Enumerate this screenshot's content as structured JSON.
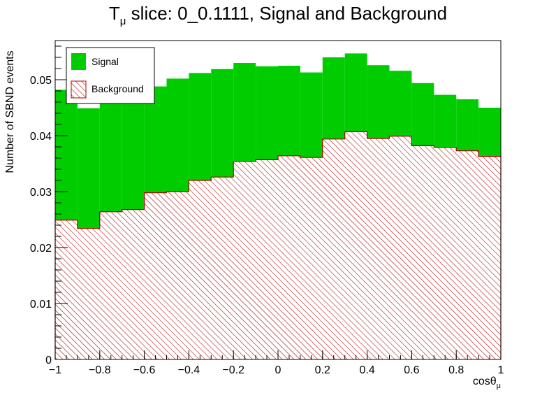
{
  "chart_data": {
    "type": "bar",
    "stacked": true,
    "title": {
      "main": "T",
      "sub": "μ",
      "rest": " slice: 0_0.1111, Signal and Background"
    },
    "xlabel": {
      "main": "cosθ",
      "sub": "μ"
    },
    "ylabel": "Number of SBND events",
    "xlim": [
      -1,
      1
    ],
    "ylim": [
      0,
      0.057
    ],
    "grid": false,
    "legend_position": "top-left",
    "x_ticks": [
      {
        "value": -1,
        "label": "−1"
      },
      {
        "value": -0.8,
        "label": "−0.8"
      },
      {
        "value": -0.6,
        "label": "−0.6"
      },
      {
        "value": -0.4,
        "label": "−0.4"
      },
      {
        "value": -0.2,
        "label": "−0.2"
      },
      {
        "value": 0,
        "label": "0"
      },
      {
        "value": 0.2,
        "label": "0.2"
      },
      {
        "value": 0.4,
        "label": "0.4"
      },
      {
        "value": 0.6,
        "label": "0.6"
      },
      {
        "value": 0.8,
        "label": "0.8"
      },
      {
        "value": 1,
        "label": "1"
      }
    ],
    "y_ticks": [
      {
        "value": 0,
        "label": "0"
      },
      {
        "value": 0.01,
        "label": "0.01"
      },
      {
        "value": 0.02,
        "label": "0.02"
      },
      {
        "value": 0.03,
        "label": "0.03"
      },
      {
        "value": 0.04,
        "label": "0.04"
      },
      {
        "value": 0.05,
        "label": "0.05"
      }
    ],
    "bin_edges": [
      -1,
      -0.9,
      -0.8,
      -0.7,
      -0.6,
      -0.5,
      -0.4,
      -0.3,
      -0.2,
      -0.1,
      0,
      0.1,
      0.2,
      0.3,
      0.4,
      0.5,
      0.6,
      0.7,
      0.8,
      0.9,
      1
    ],
    "series": [
      {
        "name": "Background",
        "style": "hatched",
        "color": "#aa0000",
        "values": [
          0.0249,
          0.0234,
          0.0264,
          0.0268,
          0.0298,
          0.03,
          0.032,
          0.0326,
          0.0354,
          0.0357,
          0.0364,
          0.0361,
          0.0394,
          0.0407,
          0.0395,
          0.0399,
          0.0382,
          0.0379,
          0.0373,
          0.0363
        ]
      },
      {
        "name": "Signal",
        "style": "solid",
        "color": "#00cc00",
        "values": [
          0.0233,
          0.0215,
          0.0204,
          0.0206,
          0.019,
          0.0202,
          0.0192,
          0.0193,
          0.0176,
          0.0167,
          0.0161,
          0.0152,
          0.0146,
          0.014,
          0.0131,
          0.0117,
          0.0112,
          0.0094,
          0.0092,
          0.0087
        ]
      }
    ]
  }
}
